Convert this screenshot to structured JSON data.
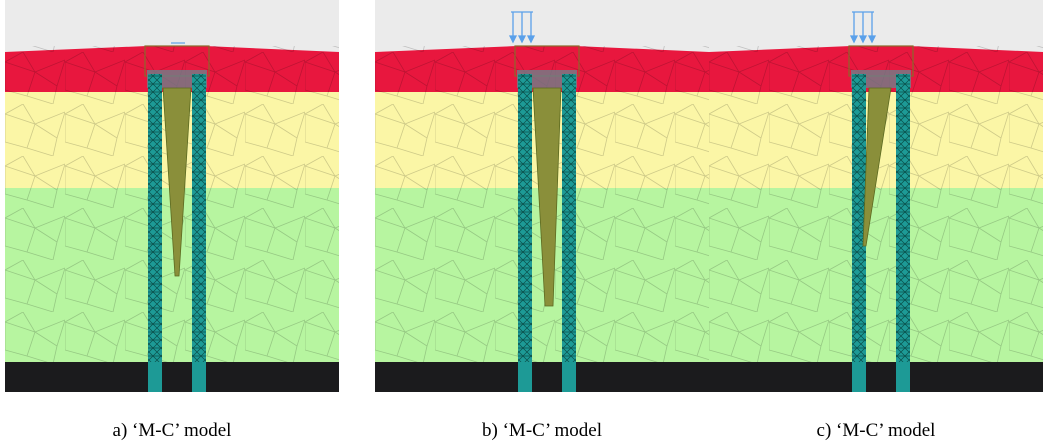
{
  "panels": [
    {
      "caption": "a) ‘M-C’ model"
    },
    {
      "caption": "b) ‘M-C’ model"
    },
    {
      "caption": "c) ‘M-C’ model"
    }
  ]
}
